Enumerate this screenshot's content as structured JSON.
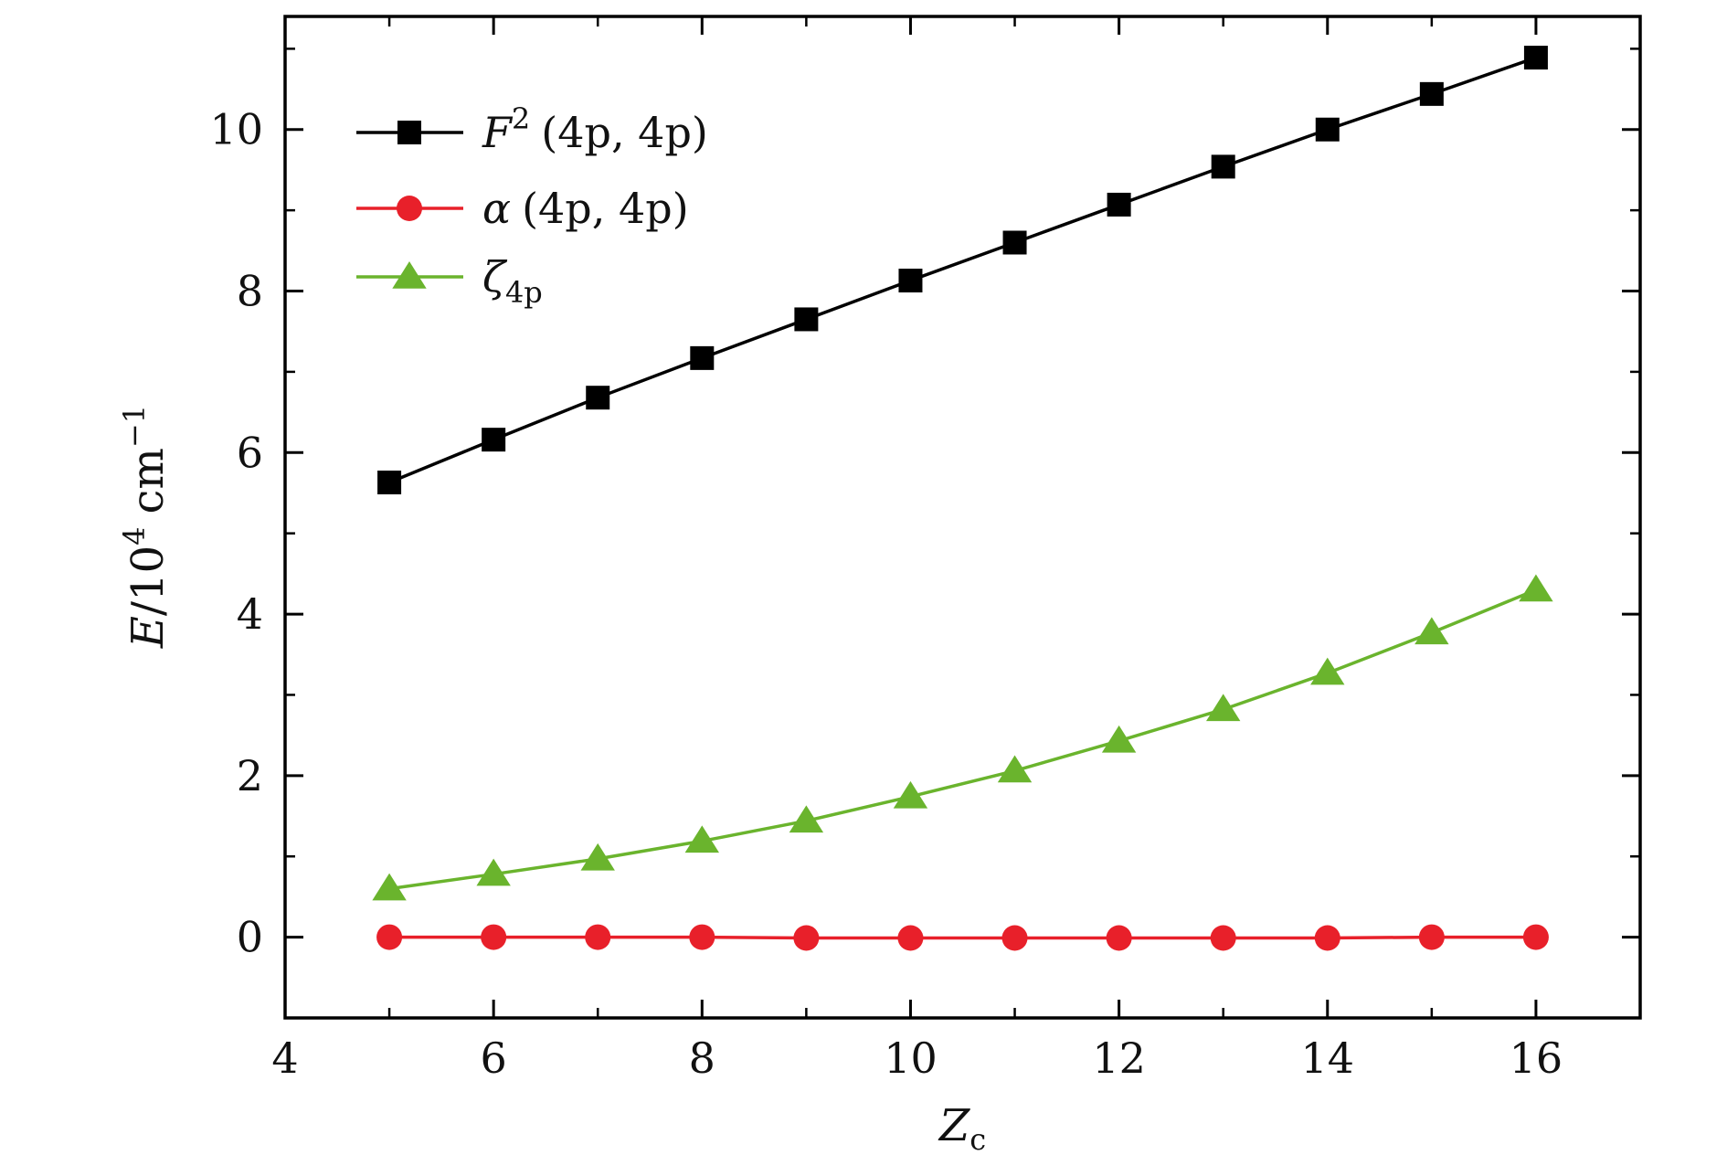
{
  "chart_data": {
    "type": "line",
    "xlabel": "Z",
    "xlabel_sub": "c",
    "ylabel_italic": "E",
    "ylabel_rest": "/10",
    "ylabel_sup": "4",
    "ylabel_unit": "cm",
    "ylabel_unit_sup": "−1",
    "xlim": [
      4,
      17
    ],
    "ylim": [
      -1,
      11.4
    ],
    "x_ticks": [
      4,
      6,
      8,
      10,
      12,
      14,
      16
    ],
    "y_ticks": [
      0,
      2,
      4,
      6,
      8,
      10
    ],
    "grid": false,
    "legend_position": "top-left",
    "x": [
      5,
      6,
      7,
      8,
      9,
      10,
      11,
      12,
      13,
      14,
      15,
      16
    ],
    "series": [
      {
        "name": "F",
        "name_sup": "2",
        "name_args": "(4p, 4p)",
        "marker": "square",
        "color": "#000000",
        "values": [
          5.63,
          6.16,
          6.68,
          7.17,
          7.65,
          8.13,
          8.6,
          9.07,
          9.54,
          10.0,
          10.44,
          10.89
        ]
      },
      {
        "name": "α",
        "name_sup": "",
        "name_args": "(4p, 4p)",
        "marker": "circle",
        "color": "#e8202a",
        "values": [
          0.0,
          0.0,
          0.0,
          0.0,
          -0.01,
          -0.01,
          -0.01,
          -0.01,
          -0.01,
          -0.01,
          0.0,
          0.0
        ]
      },
      {
        "name": "ζ",
        "name_sub": "4p",
        "marker": "triangle",
        "color": "#6ab42d",
        "values": [
          0.6,
          0.78,
          0.97,
          1.19,
          1.44,
          1.74,
          2.06,
          2.43,
          2.82,
          3.27,
          3.77,
          4.3
        ]
      }
    ]
  }
}
